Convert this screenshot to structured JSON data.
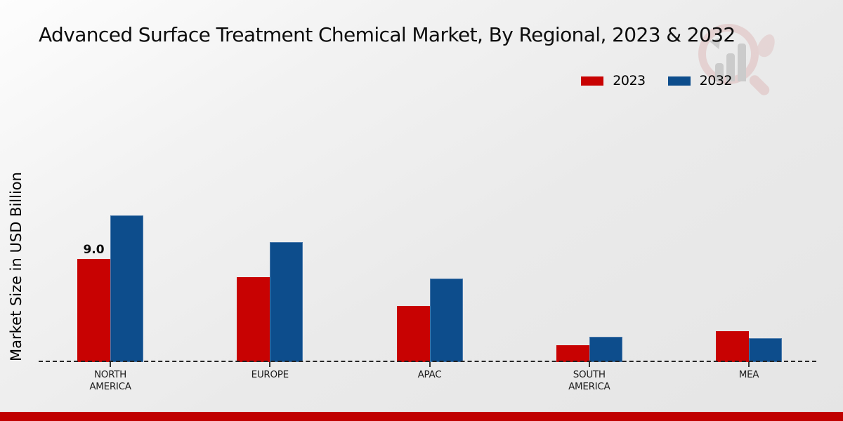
{
  "page": {
    "title": "Advanced Surface Treatment Chemical Market, By Regional, 2023 & 2032",
    "ylabel": "Market Size in USD Billion",
    "watermark_icon": "market-research-future-logo",
    "colors": {
      "footer_bar": "#c00000",
      "baseline_dash": "#262626",
      "text": "#0d0d0d"
    }
  },
  "chart_data": {
    "type": "bar",
    "title": "Advanced Surface Treatment Chemical Market, By Regional, 2023 & 2032",
    "xlabel": "",
    "ylabel": "Market Size in USD Billion",
    "categories": [
      "NORTH\nAMERICA",
      "EUROPE",
      "APAC",
      "SOUTH\nAMERICA",
      "MEA"
    ],
    "series": [
      {
        "name": "2023",
        "color": "#c80202",
        "edge_color": null,
        "values": [
          9.0,
          7.4,
          4.9,
          1.5,
          2.7
        ]
      },
      {
        "name": "2032",
        "color": "#0d4d8c",
        "edge_color": "#4a79ab",
        "values": [
          12.8,
          10.5,
          7.3,
          2.2,
          2.1
        ]
      }
    ],
    "annotations": [
      {
        "text": "9.0",
        "series_index": 0,
        "category_index": 0
      }
    ],
    "ylim": [
      0,
      13.5
    ],
    "unit": "USD Billion",
    "grid": false,
    "axis_style": "dashed-baseline-only",
    "legend_position": "top-right"
  }
}
